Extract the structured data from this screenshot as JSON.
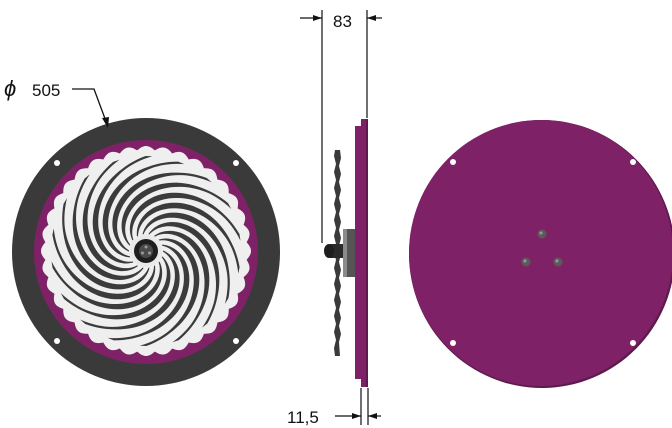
{
  "dimensions": {
    "diameter_symbol": "ϕ",
    "diameter_value": "505",
    "depth_value": "83",
    "thickness_value": "11,5"
  },
  "colors": {
    "plate": "#7f2167",
    "plate_edge": "#5e1a4d",
    "rim": "#3a3a3a",
    "spiral_dark": "#3b3b3b",
    "spiral_light": "#f2f2f2",
    "hub": "#1e1e1e",
    "dimension_line": "#111111"
  },
  "views": {
    "front": {
      "spiral_arms": 18,
      "mount_holes": 4
    },
    "back": {
      "mount_holes": 4,
      "center_bolts": 3
    }
  }
}
